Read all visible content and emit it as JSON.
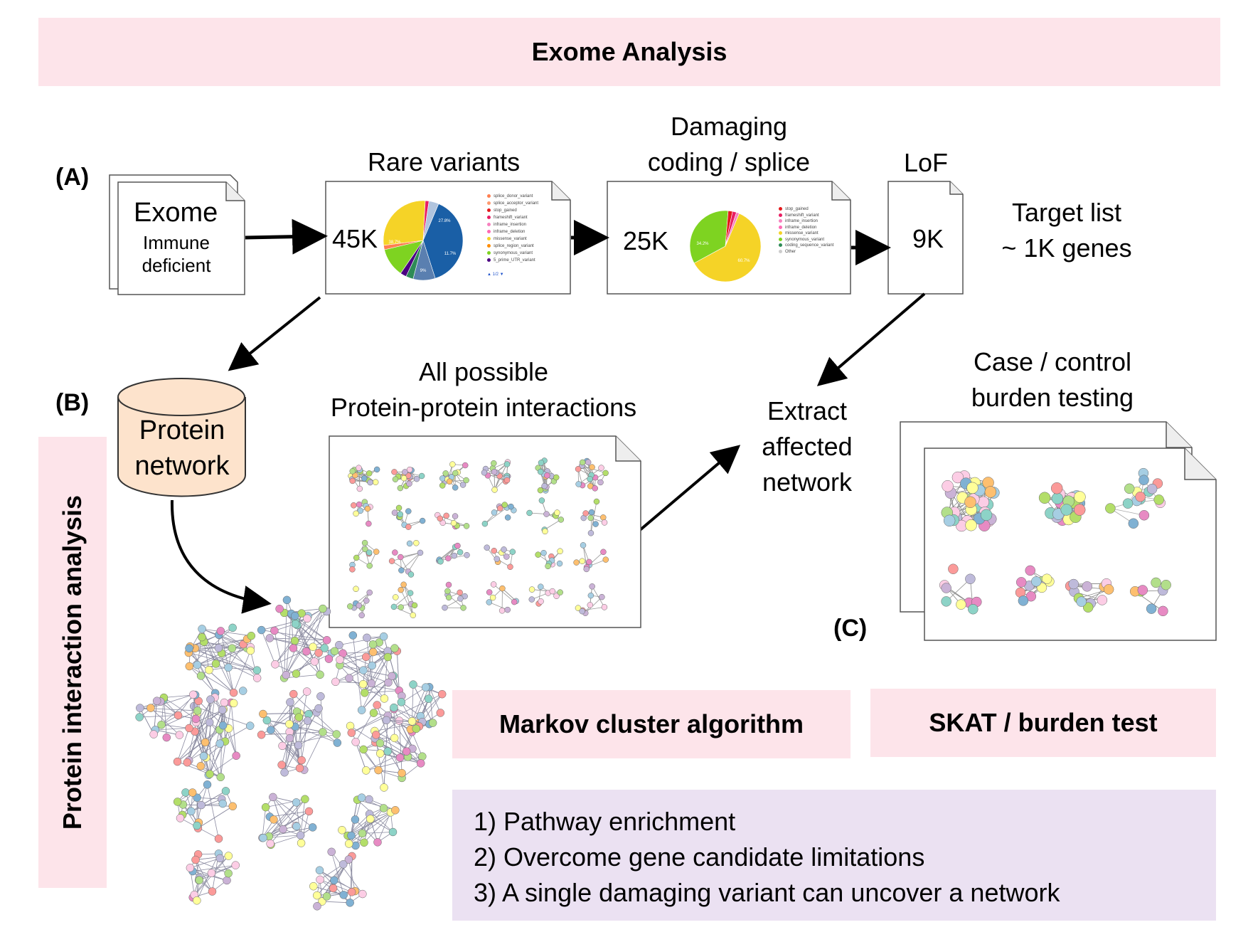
{
  "title": "Exome Analysis",
  "sections": {
    "a": "(A)",
    "b": "(B)",
    "c": "(C)"
  },
  "pipeline": {
    "exome_title": "Exome",
    "exome_sub1": "Immune",
    "exome_sub2": "deficient",
    "rare_label": "Rare variants",
    "rare_count": "45K",
    "damaging_line1": "Damaging",
    "damaging_line2": "coding / splice",
    "damaging_count": "25K",
    "lof_label": "LoF",
    "lof_count": "9K",
    "target_line1": "Target list",
    "target_line2": "~ 1K genes"
  },
  "rare_pie": {
    "slices": [
      {
        "value": 38.7,
        "color": "#1a5fa6"
      },
      {
        "value": 9.0,
        "color": "#5a7fb0"
      },
      {
        "value": 3.0,
        "color": "#2e8b57"
      },
      {
        "value": 2.5,
        "color": "#4b0082"
      },
      {
        "value": 11.7,
        "color": "#7ed321"
      },
      {
        "value": 1.8,
        "color": "#ff7f50"
      },
      {
        "value": 27.8,
        "color": "#f5d327"
      },
      {
        "value": 1.5,
        "color": "#e91e63"
      },
      {
        "value": 4.0,
        "color": "#b0c4de"
      }
    ],
    "labels": [
      "38.7%",
      "9%",
      "11.7%",
      "27.8%"
    ],
    "legend": [
      {
        "text": "splice_donor_variant",
        "color": "#ff7f50"
      },
      {
        "text": "splice_acceptor_variant",
        "color": "#ff9a70"
      },
      {
        "text": "stop_gained",
        "color": "#e41a1c"
      },
      {
        "text": "frameshift_variant",
        "color": "#e91e63"
      },
      {
        "text": "inframe_insertion",
        "color": "#f781bf"
      },
      {
        "text": "inframe_deletion",
        "color": "#ff69b4"
      },
      {
        "text": "missense_variant",
        "color": "#f5d327"
      },
      {
        "text": "splice_region_variant",
        "color": "#ff8c00"
      },
      {
        "text": "synonymous_variant",
        "color": "#7ed321"
      },
      {
        "text": "5_prime_UTR_variant",
        "color": "#4b0082"
      }
    ],
    "pager": "1/2"
  },
  "damaging_pie": {
    "slices": [
      {
        "value": 60.7,
        "color": "#f5d327"
      },
      {
        "value": 34.2,
        "color": "#7ed321"
      },
      {
        "value": 2.0,
        "color": "#e41a1c"
      },
      {
        "value": 1.8,
        "color": "#e91e63"
      },
      {
        "value": 1.3,
        "color": "#f781bf"
      }
    ],
    "labels": [
      "34.2%",
      "60.7%"
    ],
    "legend": [
      {
        "text": "stop_gained",
        "color": "#e41a1c"
      },
      {
        "text": "frameshift_variant",
        "color": "#e91e63"
      },
      {
        "text": "inframe_insertion",
        "color": "#f781bf"
      },
      {
        "text": "inframe_deletion",
        "color": "#ff69b4"
      },
      {
        "text": "missense_variant",
        "color": "#f5d327"
      },
      {
        "text": "synonymous_variant",
        "color": "#7ed321"
      },
      {
        "text": "coding_sequence_variant",
        "color": "#2e8b57"
      },
      {
        "text": "Other",
        "color": "#cccccc"
      }
    ]
  },
  "network_section": {
    "protein_line1": "Protein",
    "protein_line2": "network",
    "all_line1": "All possible",
    "all_line2": "Protein-protein interactions",
    "extract_line1": "Extract",
    "extract_line2": "affected",
    "extract_line3": "network",
    "case_line1": "Case / control",
    "case_line2": "burden testing",
    "side_label": "Protein interaction analysis"
  },
  "methods": {
    "markov": "Markov cluster algorithm",
    "skat": "SKAT / burden test"
  },
  "benefits": [
    "1) Pathway enrichment",
    "2) Overcome gene candidate limitations",
    "3) A single damaging variant can uncover a network"
  ],
  "colors": {
    "pink_banner": "#fde4ea",
    "purple_box": "#ebe1f2",
    "cylinder_fill": "#fde3cc"
  }
}
